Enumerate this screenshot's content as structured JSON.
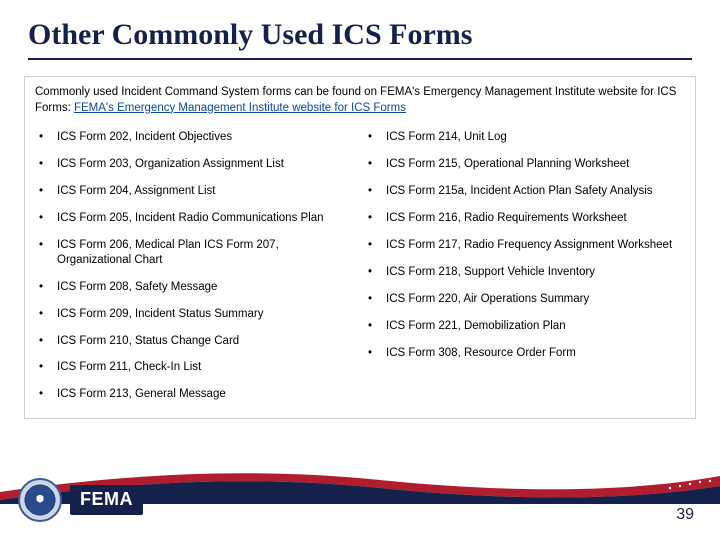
{
  "title": "Other Commonly Used ICS Forms",
  "intro": {
    "lead": "Commonly used Incident Command System forms can be found on FEMA's Emergency Management Institute website for ICS Forms: ",
    "link": "FEMA's Emergency Management Institute website for ICS Forms"
  },
  "left_items": [
    "ICS Form 202, Incident Objectives",
    "ICS Form 203, Organization Assignment List",
    "ICS Form 204, Assignment List",
    "ICS Form 205, Incident Radio Communications Plan",
    "ICS Form 206, Medical Plan ICS Form 207, Organizational Chart",
    "ICS Form 208, Safety Message",
    "ICS Form 209, Incident Status Summary",
    "ICS Form 210, Status Change Card",
    "ICS Form 211, Check-In List",
    "ICS Form 213, General Message"
  ],
  "right_items": [
    "ICS Form 214, Unit Log",
    "ICS Form 215, Operational Planning Worksheet",
    "ICS Form 215a, Incident Action Plan Safety Analysis",
    "ICS Form 216, Radio Requirements Worksheet",
    "ICS Form 217, Radio Frequency Assignment Worksheet",
    "ICS Form 218, Support Vehicle Inventory",
    "ICS Form 220, Air Operations Summary",
    "ICS Form 221, Demobilization Plan",
    "ICS Form 308, Resource Order Form"
  ],
  "fema_label": "FEMA",
  "page_number": "39",
  "colors": {
    "title": "#14214b",
    "link": "#0b4aa2",
    "band_red": "#b01e2e",
    "band_blue": "#14214b",
    "band_light": "#e9edf4"
  }
}
